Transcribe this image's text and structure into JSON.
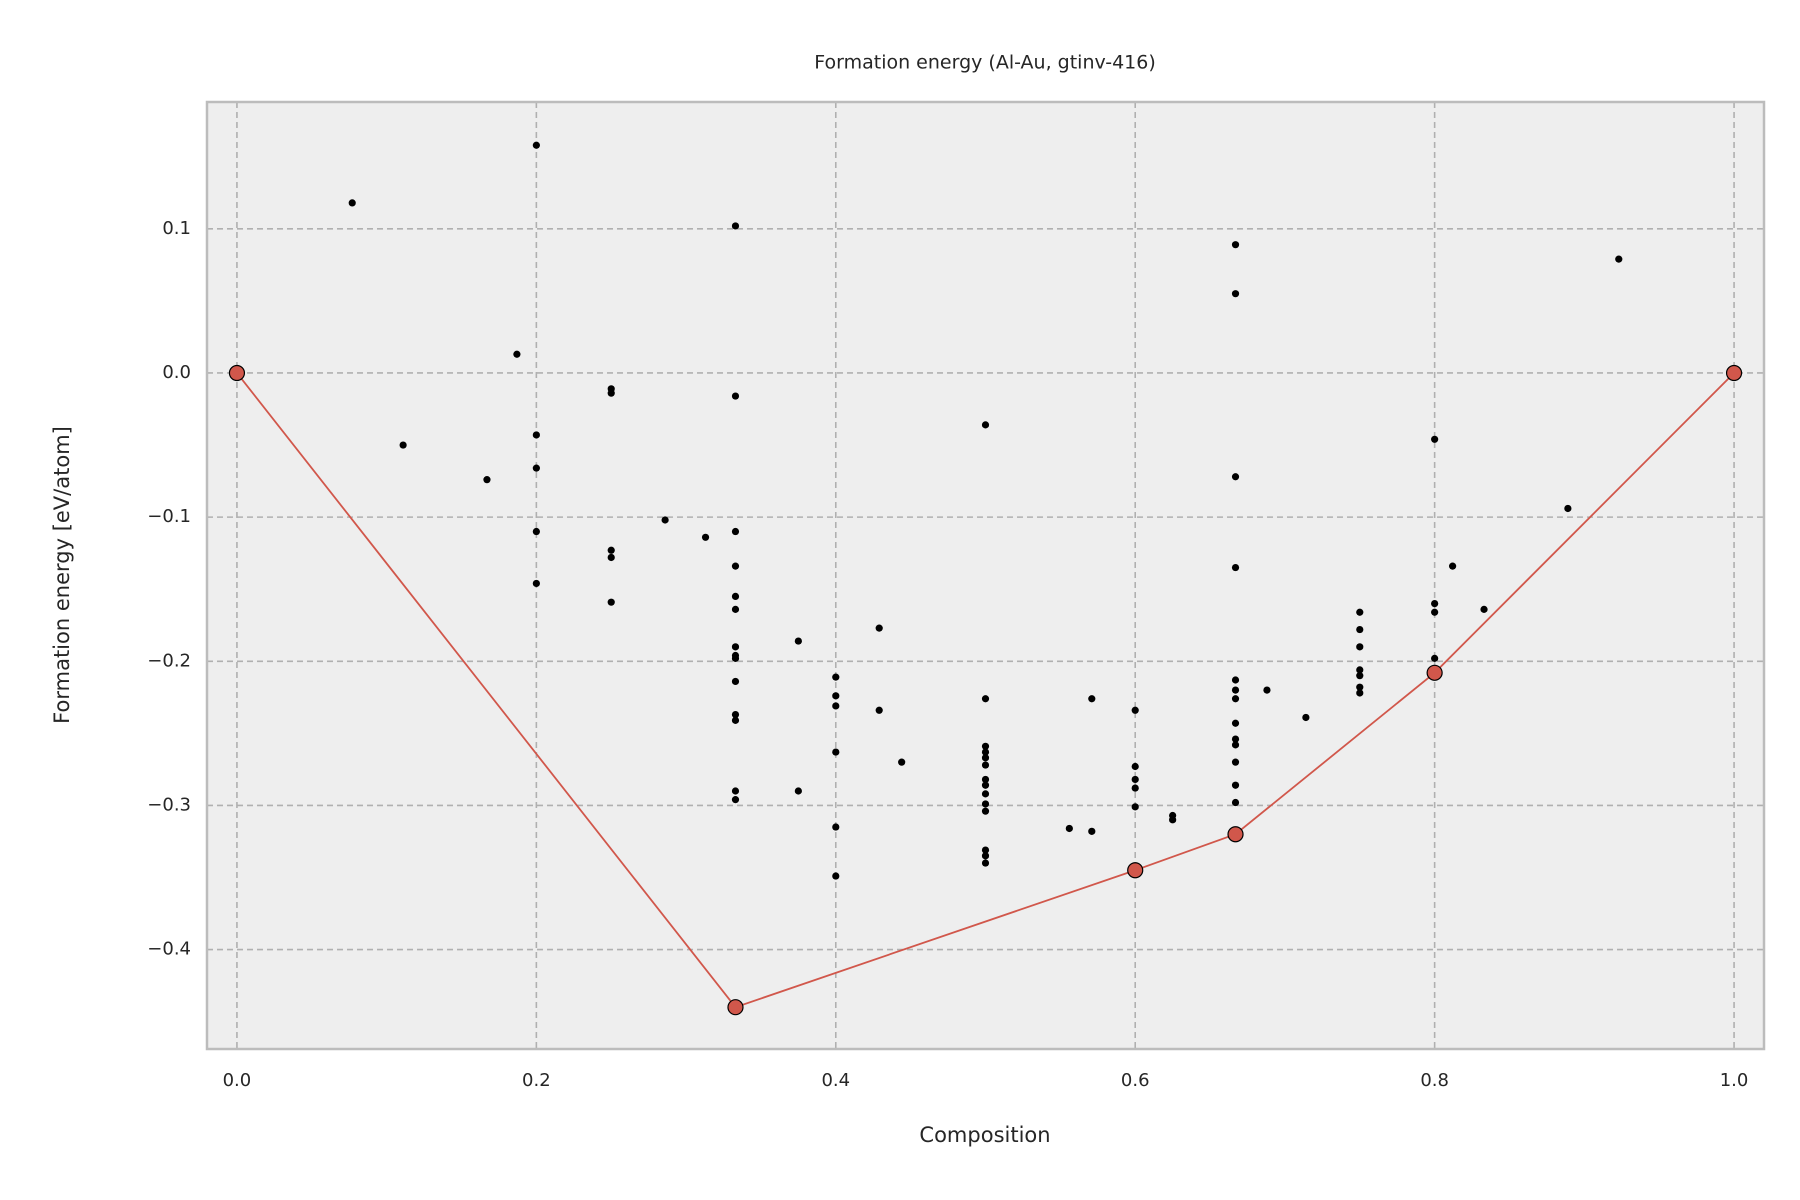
{
  "chart_data": {
    "type": "scatter",
    "title": "Formation energy (Al-Au, gtinv-416)",
    "xlabel": "Composition",
    "ylabel": "Formation energy [eV/atom]",
    "xlim": [
      -0.02,
      1.02
    ],
    "ylim": [
      -0.469,
      0.188
    ],
    "xticks": [
      {
        "value": 0,
        "label": "0.0"
      },
      0.2,
      0.4,
      0.6,
      0.8,
      {
        "value": 1,
        "label": "1.0"
      }
    ],
    "yticks": [
      {
        "value": -0.4,
        "label": "−0.4"
      },
      {
        "value": -0.3,
        "label": "−0.3"
      },
      {
        "value": -0.2,
        "label": "−0.2"
      },
      {
        "value": -0.1,
        "label": "−0.1"
      },
      {
        "value": 0,
        "label": "0.0"
      },
      0.1
    ],
    "grid": true,
    "series": [
      {
        "type": "line",
        "color": "#d1574b",
        "x": [
          0,
          0.333,
          0.6,
          0.667,
          0.8,
          1
        ],
        "values": [
          0,
          -0.44,
          -0.345,
          -0.32,
          -0.208,
          0
        ]
      },
      {
        "type": "scatter",
        "color": "#000000",
        "x": [
          0.077,
          0.111,
          0.167,
          0.187,
          0.2,
          0.2,
          0.2,
          0.2,
          0.2,
          0.25,
          0.25,
          0.25,
          0.25,
          0.25,
          0.286,
          0.313,
          0.333,
          0.333,
          0.333,
          0.333,
          0.333,
          0.333,
          0.333,
          0.333,
          0.333,
          0.333,
          0.333,
          0.333,
          0.333,
          0.333,
          0.375,
          0.375,
          0.4,
          0.4,
          0.4,
          0.4,
          0.4,
          0.4,
          0.429,
          0.429,
          0.444,
          0.5,
          0.5,
          0.5,
          0.5,
          0.5,
          0.5,
          0.5,
          0.5,
          0.5,
          0.5,
          0.5,
          0.5,
          0.5,
          0.5,
          0.556,
          0.571,
          0.571,
          0.6,
          0.6,
          0.6,
          0.6,
          0.6,
          0.625,
          0.625,
          0.667,
          0.667,
          0.667,
          0.667,
          0.667,
          0.667,
          0.667,
          0.667,
          0.667,
          0.667,
          0.667,
          0.667,
          0.667,
          0.688,
          0.714,
          0.75,
          0.75,
          0.75,
          0.75,
          0.75,
          0.75,
          0.75,
          0.8,
          0.8,
          0.8,
          0.8,
          0.812,
          0.833,
          0.889,
          0.923
        ],
        "values": [
          0.118,
          -0.05,
          -0.074,
          0.013,
          0.158,
          -0.043,
          -0.066,
          -0.11,
          -0.146,
          -0.011,
          -0.014,
          -0.123,
          -0.128,
          -0.159,
          -0.102,
          -0.114,
          0.102,
          -0.016,
          -0.11,
          -0.134,
          -0.155,
          -0.164,
          -0.19,
          -0.196,
          -0.198,
          -0.214,
          -0.237,
          -0.241,
          -0.29,
          -0.296,
          -0.186,
          -0.29,
          -0.211,
          -0.224,
          -0.231,
          -0.263,
          -0.315,
          -0.349,
          -0.177,
          -0.234,
          -0.27,
          -0.036,
          -0.226,
          -0.259,
          -0.263,
          -0.267,
          -0.272,
          -0.282,
          -0.286,
          -0.292,
          -0.299,
          -0.304,
          -0.331,
          -0.335,
          -0.34,
          -0.316,
          -0.318,
          -0.226,
          -0.234,
          -0.273,
          -0.282,
          -0.288,
          -0.301,
          -0.307,
          -0.31,
          0.089,
          0.055,
          -0.072,
          -0.135,
          -0.213,
          -0.22,
          -0.226,
          -0.243,
          -0.254,
          -0.258,
          -0.27,
          -0.286,
          -0.298,
          -0.22,
          -0.239,
          -0.166,
          -0.178,
          -0.19,
          -0.206,
          -0.21,
          -0.218,
          -0.222,
          -0.046,
          -0.16,
          -0.166,
          -0.198,
          -0.134,
          -0.164,
          -0.094,
          0.079
        ]
      }
    ]
  }
}
